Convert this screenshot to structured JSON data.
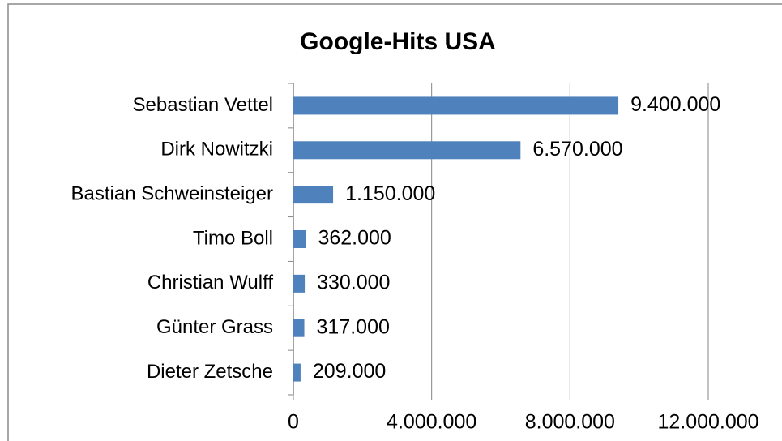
{
  "chart_data": {
    "type": "bar",
    "orientation": "horizontal",
    "title": "Google-Hits USA",
    "categories": [
      "Sebastian Vettel",
      "Dirk Nowitzki",
      "Bastian Schweinsteiger",
      "Timo Boll",
      "Christian Wulff",
      "Günter Grass",
      "Dieter Zetsche"
    ],
    "values": [
      9400000,
      6570000,
      1150000,
      362000,
      330000,
      317000,
      209000
    ],
    "value_labels": [
      "9.400.000",
      "6.570.000",
      "1.150.000",
      "362.000",
      "330.000",
      "317.000",
      "209.000"
    ],
    "color": "#4f81bd",
    "xlim": [
      0,
      12000000
    ],
    "xticks": [
      0,
      {
        "value": 4000000,
        "label": "4.000.000"
      },
      {
        "value": 8000000,
        "label": "8.000.000"
      },
      {
        "value": 12000000,
        "label": "12.000.000"
      }
    ],
    "grid": true
  }
}
